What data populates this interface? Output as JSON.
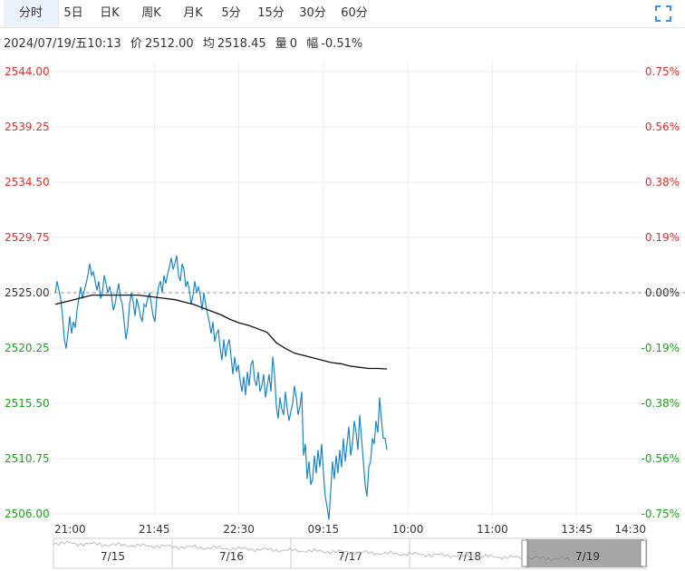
{
  "tabs": [
    {
      "label": "分时",
      "active": true
    },
    {
      "label": "5日"
    },
    {
      "label": "日K"
    },
    {
      "label": "周K"
    },
    {
      "label": "月K"
    },
    {
      "label": "5分"
    },
    {
      "label": "15分"
    },
    {
      "label": "30分"
    },
    {
      "label": "60分"
    }
  ],
  "info": {
    "datetime": "2024/07/19/五10:13",
    "price_label": "价",
    "price": "2512.00",
    "avg_label": "均",
    "avg": "2518.45",
    "volume_label": "量",
    "volume": "0",
    "change_label": "幅",
    "change": "-0.51%"
  },
  "colors": {
    "up": "#e03030",
    "down": "#21a121",
    "neutral": "#333333",
    "price_line": "#1a87c7",
    "avg_line": "#111111",
    "grid": "#eeeeee",
    "tab_active_bg": "#ebf2fb",
    "expand_icon": "#3a8ee6"
  },
  "chart_data": {
    "type": "line",
    "reference": 2525.0,
    "ylim": [
      2506.0,
      2544.0
    ],
    "y_ticks": [
      "2544.00",
      "2539.25",
      "2534.50",
      "2529.75",
      "2525.00",
      "2520.25",
      "2515.50",
      "2510.75",
      "2506.00"
    ],
    "pct_ticks": [
      "0.75%",
      "0.56%",
      "0.38%",
      "0.19%",
      "0.00%",
      "-0.19%",
      "-0.38%",
      "-0.56%",
      "-0.75%"
    ],
    "x_ticks": [
      "21:00",
      "21:45",
      "22:30",
      "09:15",
      "10:00",
      "11:00",
      "13:45",
      "14:30"
    ],
    "series": [
      {
        "values": [
          2525.0,
          2526.0,
          2525.2,
          2524.5,
          2523.0,
          2521.0,
          2520.2,
          2521.5,
          2523.0,
          2521.5,
          2522.5,
          2522.0,
          2523.5,
          2524.5,
          2525.5,
          2524.5,
          2525.2,
          2525.8,
          2526.5,
          2527.5,
          2526.5,
          2526.8,
          2526.0,
          2525.2,
          2526.0,
          2524.5,
          2525.0,
          2526.5,
          2525.8,
          2525.0,
          2525.5,
          2524.8,
          2523.5,
          2524.0,
          2525.0,
          2525.8,
          2524.5,
          2524.0,
          2522.5,
          2521.0,
          2522.0,
          2524.0,
          2525.0,
          2524.2,
          2523.0,
          2524.5,
          2523.8,
          2523.0,
          2522.5,
          2524.0,
          2523.8,
          2524.5,
          2525.0,
          2524.0,
          2523.0,
          2522.5,
          2524.5,
          2525.5,
          2526.0,
          2525.0,
          2526.5,
          2525.8,
          2526.6,
          2527.2,
          2528.0,
          2527.0,
          2527.5,
          2528.2,
          2526.5,
          2526.0,
          2527.5,
          2527.0,
          2525.5,
          2526.0,
          2525.2,
          2524.0,
          2524.8,
          2526.0,
          2525.0,
          2525.5,
          2524.8,
          2523.5,
          2525.0,
          2524.0,
          2523.2,
          2522.5,
          2521.5,
          2522.5,
          2520.8,
          2521.5,
          2521.8,
          2520.2,
          2519.2,
          2521.0,
          2519.5,
          2520.5,
          2521.0,
          2519.5,
          2518.0,
          2519.5,
          2518.2,
          2518.8,
          2517.5,
          2516.5,
          2517.8,
          2516.2,
          2518.2,
          2517.0,
          2518.8,
          2519.2,
          2517.5,
          2517.0,
          2518.2,
          2516.5,
          2517.0,
          2518.0,
          2516.0,
          2517.0,
          2518.0,
          2516.5,
          2519.5,
          2518.0,
          2515.2,
          2514.2,
          2516.0,
          2515.0,
          2514.5,
          2516.5,
          2515.0,
          2514.0,
          2514.8,
          2515.5,
          2517.0,
          2516.0,
          2514.5,
          2515.2,
          2516.5,
          2511.0,
          2512.0,
          2509.0,
          2510.5,
          2508.5,
          2509.0,
          2511.0,
          2509.5,
          2511.5,
          2510.0,
          2512.0,
          2509.5,
          2507.5,
          2506.6,
          2505.5,
          2508.0,
          2510.5,
          2509.0,
          2511.0,
          2509.5,
          2511.5,
          2510.0,
          2512.5,
          2510.5,
          2512.0,
          2513.5,
          2511.0,
          2512.0,
          2514.0,
          2513.0,
          2511.5,
          2514.5,
          2512.5,
          2510.5,
          2508.5,
          2507.5,
          2510.0,
          2510.5,
          2512.5,
          2512.0,
          2514.0,
          2513.0,
          2516.0,
          2514.0,
          2512.5,
          2512.5,
          2511.5
        ]
      },
      {
        "values": [
          2524.0,
          2524.2,
          2524.4,
          2524.6,
          2524.8,
          2524.8,
          2524.8,
          2524.8,
          2524.8,
          2524.8,
          2524.7,
          2524.6,
          2524.5,
          2524.4,
          2524.2,
          2524.0,
          2523.7,
          2523.4,
          2523.1,
          2522.7,
          2522.4,
          2522.2,
          2521.9,
          2521.6,
          2520.7,
          2520.2,
          2519.8,
          2519.6,
          2519.4,
          2519.2,
          2519.0,
          2518.9,
          2518.7,
          2518.6,
          2518.5,
          2518.5,
          2518.45
        ]
      }
    ]
  },
  "navigator": {
    "labels": [
      "7/15",
      "7/16",
      "7/17",
      "7/18",
      "7/19"
    ]
  }
}
